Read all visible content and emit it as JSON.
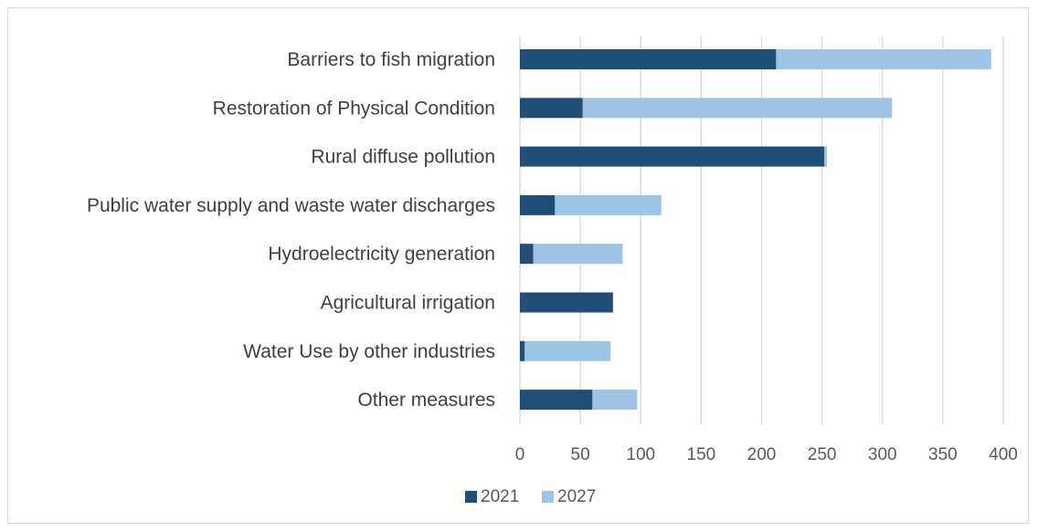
{
  "chart_data": {
    "type": "bar",
    "orientation": "horizontal",
    "stacked": true,
    "categories": [
      "Barriers to fish migration",
      "Restoration of Physical Condition",
      "Rural diffuse pollution",
      "Public water supply and waste water discharges",
      "Hydroelectricity generation",
      "Agricultural irrigation",
      "Water Use by other industries",
      "Other measures"
    ],
    "series": [
      {
        "name": "2021",
        "color": "#1f4e79",
        "values": [
          212,
          52,
          252,
          29,
          11,
          77,
          4,
          60
        ]
      },
      {
        "name": "2027",
        "color": "#9dc3e6",
        "values": [
          178,
          256,
          2,
          88,
          74,
          0,
          71,
          37
        ]
      }
    ],
    "xlim": [
      0,
      400
    ],
    "xticks": [
      0,
      50,
      100,
      150,
      200,
      250,
      300,
      350,
      400
    ],
    "grid": "vertical",
    "legend": "bottom-center"
  }
}
